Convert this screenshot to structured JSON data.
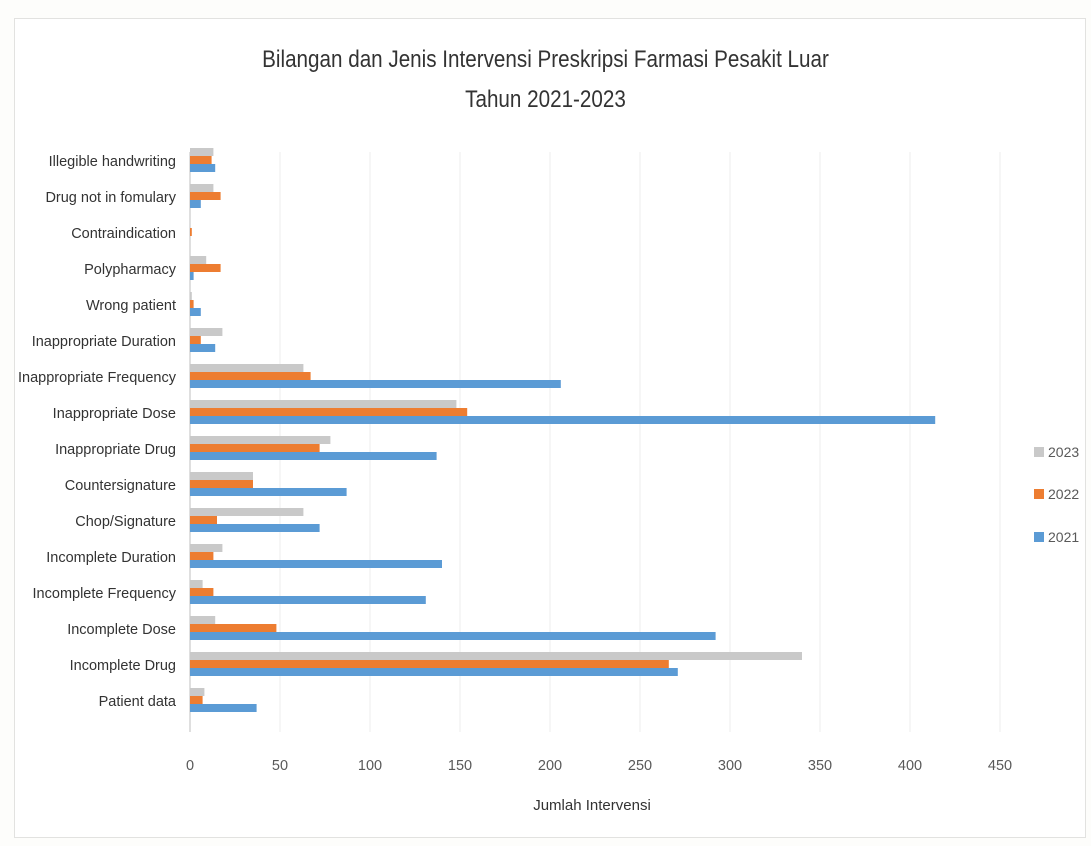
{
  "chart_data": {
    "type": "bar",
    "orientation": "horizontal",
    "title": "Bilangan dan Jenis Intervensi Preskripsi Farmasi Pesakit Luar",
    "subtitle": "Tahun 2021-2023",
    "xlabel": "Jumlah Intervensi",
    "ylabel": "",
    "xlim": [
      0,
      450
    ],
    "xticks": [
      "0",
      "50",
      "100",
      "150",
      "200",
      "250",
      "300",
      "350",
      "400",
      "450"
    ],
    "grid": true,
    "legend_position": "right",
    "categories": [
      "Patient data",
      "Incomplete Drug",
      "Incomplete Dose",
      "Incomplete Frequency",
      "Incomplete Duration",
      "Chop/Signature",
      "Countersignature",
      "Inappropriate Drug",
      "Inappropriate Dose",
      "Inappropriate Frequency",
      "Inappropriate Duration",
      "Wrong patient",
      "Polypharmacy",
      "Contraindication",
      "Drug not in fomulary",
      "Illegible handwriting"
    ],
    "series": [
      {
        "name": "2021",
        "color": "#5b9bd5",
        "values": [
          37,
          271,
          292,
          131,
          140,
          72,
          87,
          137,
          414,
          206,
          14,
          6,
          2,
          0,
          6,
          14
        ]
      },
      {
        "name": "2022",
        "color": "#ed7d31",
        "values": [
          7,
          266,
          48,
          13,
          13,
          15,
          35,
          72,
          154,
          67,
          6,
          2,
          17,
          1,
          17,
          12
        ]
      },
      {
        "name": "2023",
        "color": "#c9c9c9",
        "values": [
          8,
          340,
          14,
          7,
          18,
          63,
          35,
          78,
          148,
          63,
          18,
          1,
          9,
          0,
          13,
          13
        ]
      }
    ]
  }
}
